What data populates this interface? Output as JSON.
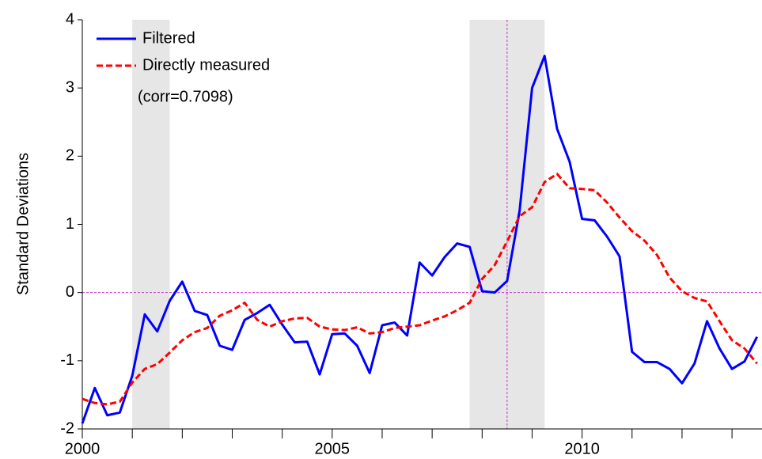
{
  "chart_data": {
    "type": "line",
    "ylabel": "Standard Deviations",
    "annotation": "(corr=0.7098)",
    "x": [
      2000,
      2000.25,
      2000.5,
      2000.75,
      2001,
      2001.25,
      2001.5,
      2001.75,
      2002,
      2002.25,
      2002.5,
      2002.75,
      2003,
      2003.25,
      2003.5,
      2003.75,
      2004,
      2004.25,
      2004.5,
      2004.75,
      2005,
      2005.25,
      2005.5,
      2005.75,
      2006,
      2006.25,
      2006.5,
      2006.75,
      2007,
      2007.25,
      2007.5,
      2007.75,
      2008,
      2008.25,
      2008.5,
      2008.75,
      2009,
      2009.25,
      2009.5,
      2009.75,
      2010,
      2010.25,
      2010.5,
      2010.75,
      2011,
      2011.25,
      2011.5,
      2011.75,
      2012,
      2012.25,
      2012.5,
      2012.75,
      2013,
      2013.25,
      2013.5
    ],
    "series": [
      {
        "name": "Filtered",
        "color": "#0000ff",
        "dash": false,
        "values": [
          -1.92,
          -1.4,
          -1.8,
          -1.76,
          -1.22,
          -0.32,
          -0.57,
          -0.12,
          0.16,
          -0.27,
          -0.33,
          -0.78,
          -0.84,
          -0.4,
          -0.3,
          -0.18,
          -0.47,
          -0.73,
          -0.72,
          -1.2,
          -0.61,
          -0.6,
          -0.78,
          -1.18,
          -0.48,
          -0.44,
          -0.63,
          0.44,
          0.25,
          0.52,
          0.72,
          0.67,
          0.02,
          0.0,
          0.17,
          1.2,
          3.0,
          3.47,
          2.4,
          1.92,
          1.08,
          1.06,
          0.82,
          0.53,
          -0.87,
          -1.02,
          -1.02,
          -1.12,
          -1.33,
          -1.04,
          -0.42,
          -0.82,
          -1.12,
          -1.01,
          -0.65
        ]
      },
      {
        "name": "Directly measured",
        "color": "#ff0000",
        "dash": true,
        "values": [
          -1.56,
          -1.62,
          -1.64,
          -1.6,
          -1.32,
          -1.12,
          -1.05,
          -0.88,
          -0.7,
          -0.58,
          -0.52,
          -0.34,
          -0.26,
          -0.15,
          -0.4,
          -0.5,
          -0.42,
          -0.38,
          -0.37,
          -0.5,
          -0.54,
          -0.55,
          -0.51,
          -0.6,
          -0.58,
          -0.52,
          -0.5,
          -0.48,
          -0.41,
          -0.35,
          -0.26,
          -0.15,
          0.2,
          0.4,
          0.75,
          1.12,
          1.25,
          1.62,
          1.74,
          1.53,
          1.52,
          1.5,
          1.32,
          1.1,
          0.9,
          0.76,
          0.55,
          0.22,
          0.02,
          -0.08,
          -0.13,
          -0.42,
          -0.7,
          -0.82,
          -1.04
        ]
      }
    ],
    "xlim": [
      2000,
      2013.6
    ],
    "xticks": [
      2000,
      2005,
      2010
    ],
    "xminorticks": [
      2001,
      2002,
      2003,
      2004,
      2006,
      2007,
      2008,
      2009,
      2011,
      2012,
      2013
    ],
    "ylim": [
      -2,
      4
    ],
    "yticks": [
      -2,
      -1,
      0,
      1,
      2,
      3,
      4
    ],
    "shaded_regions": [
      [
        2001,
        2001.75
      ],
      [
        2007.75,
        2009.25
      ]
    ],
    "shade_color": "#e6e6e6",
    "reference_hline": 0,
    "reference_vline": 2008.5,
    "reference_color": "#cc33cc",
    "legend": "upper left"
  }
}
